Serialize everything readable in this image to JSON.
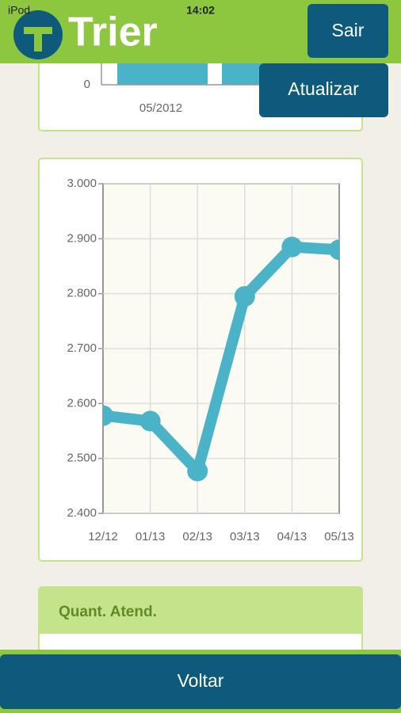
{
  "status_bar": {
    "carrier": "iPod",
    "time": "14:02"
  },
  "header": {
    "logo": "Trier",
    "buttons": [
      "Sair",
      "Atualizar"
    ]
  },
  "top_chart": {
    "type": "bar",
    "yticks": [
      0
    ],
    "categories": [
      "05/2012"
    ]
  },
  "chart_data": {
    "type": "line",
    "categories": [
      "12/12",
      "01/13",
      "02/13",
      "03/13",
      "04/13",
      "05/13"
    ],
    "values": [
      2578,
      2568,
      2477,
      2795,
      2885,
      2880
    ],
    "color": "#4ab3c8",
    "ylim": [
      2400,
      3000
    ],
    "yticks": [
      {
        "value": 2400,
        "label": "2.400"
      },
      {
        "value": 2500,
        "label": "2.500"
      },
      {
        "value": 2600,
        "label": "2.600"
      },
      {
        "value": 2700,
        "label": "2.700"
      },
      {
        "value": 2800,
        "label": "2.800"
      },
      {
        "value": 2900,
        "label": "2.900"
      },
      {
        "value": 3000,
        "label": "3.000"
      }
    ],
    "grid": true
  },
  "section": {
    "title": "Quant. Atend."
  },
  "footer": {
    "button": "Voltar"
  }
}
